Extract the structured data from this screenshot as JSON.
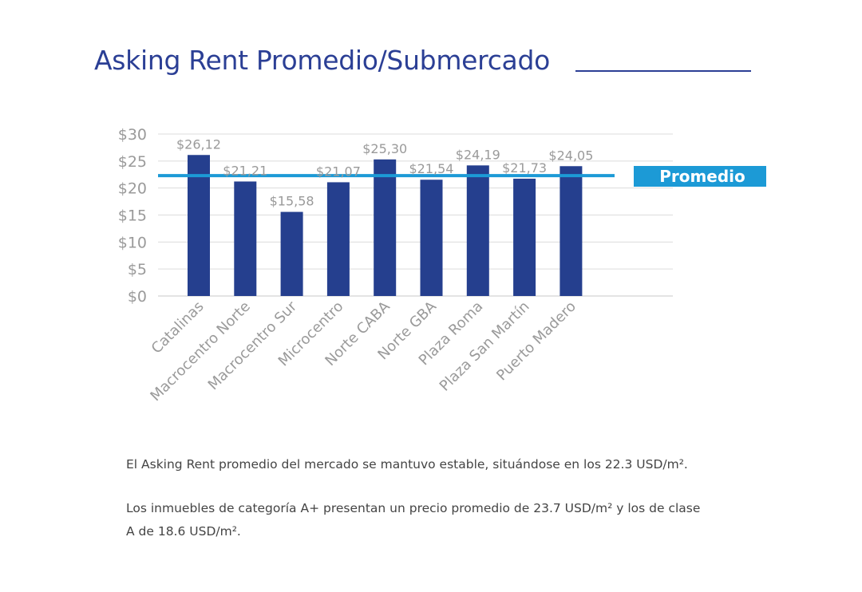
{
  "header": {
    "title": "Asking Rent Promedio/Submercado"
  },
  "chart_data": {
    "type": "bar",
    "categories": [
      "Catalinas",
      "Macrocentro Norte",
      "Macrocentro Sur",
      "Microcentro",
      "Norte CABA",
      "Norte GBA",
      "Plaza Roma",
      "Plaza San Martín",
      "Puerto Madero"
    ],
    "values": [
      26.12,
      21.21,
      15.58,
      21.07,
      25.3,
      21.54,
      24.19,
      21.73,
      24.05
    ],
    "value_labels": [
      "$26,12",
      "$21,21",
      "$15,58",
      "$21,07",
      "$25,30",
      "$21,54",
      "$24,19",
      "$21,73",
      "$24,05"
    ],
    "ylim": [
      0,
      30
    ],
    "yticks": [
      0,
      5,
      10,
      15,
      20,
      25,
      30
    ],
    "ytick_labels": [
      "$0",
      "$5",
      "$10",
      "$15",
      "$20",
      "$25",
      "$30"
    ],
    "grid": true,
    "reference_line": {
      "label": "Promedio",
      "value": 22.3,
      "color": "#1c9ad6"
    },
    "bar_color": "#253f8e"
  },
  "body": {
    "paragraph_1": "El Asking Rent promedio del mercado se mantuvo estable, situándose en los 22.3 USD/m².",
    "paragraph_2_line_1": "Los inmuebles de categoría A+ presentan un precio promedio de 23.7 USD/m² y los de clase",
    "paragraph_2_line_2": "A de 18.6 USD/m²."
  }
}
